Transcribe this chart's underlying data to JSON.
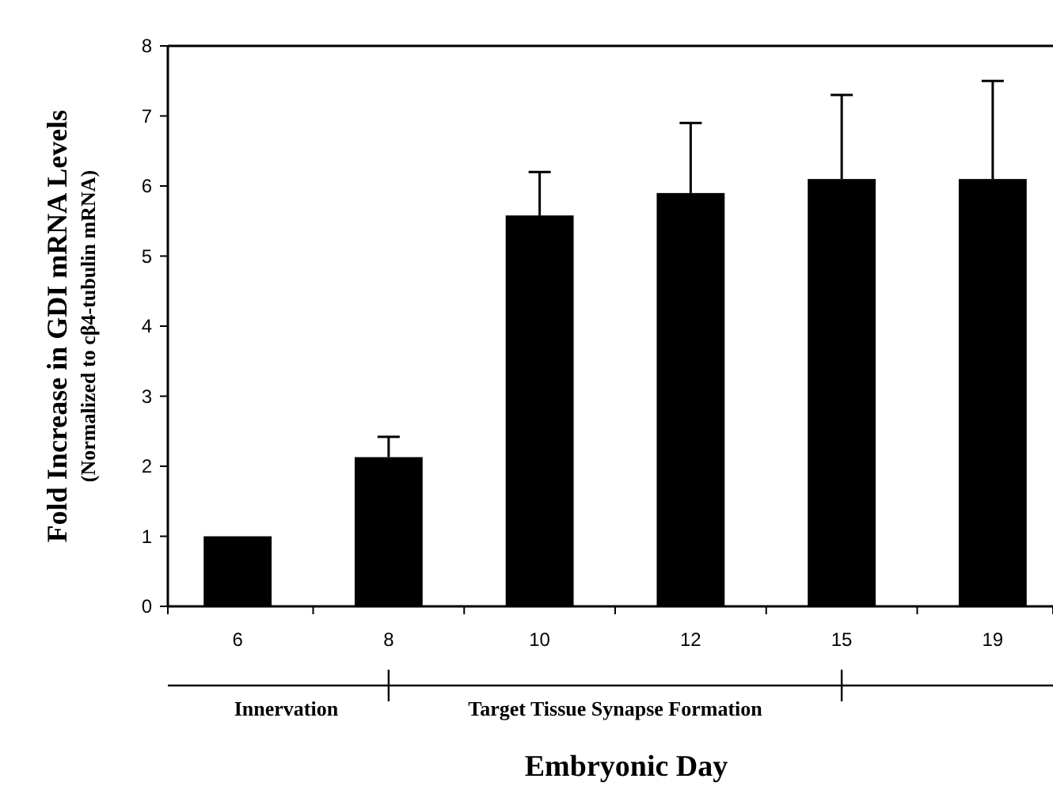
{
  "chart_data": {
    "type": "bar",
    "xlabel": "Embryonic Day",
    "ylabel": "Fold Increase in GDI mRNA Levels\n(Normalized to cβ4-tubulin mRNA)",
    "categories": [
      "6",
      "8",
      "10",
      "12",
      "15",
      "19"
    ],
    "values": [
      1.0,
      2.13,
      5.58,
      5.9,
      6.1,
      6.1
    ],
    "errors": [
      null,
      [
        2.13,
        2.42
      ],
      [
        5.58,
        6.2
      ],
      [
        5.9,
        6.9
      ],
      [
        6.1,
        7.3
      ],
      [
        6.1,
        7.5
      ]
    ],
    "color": "#000000",
    "ylim": [
      0,
      8
    ],
    "yticks": [
      0,
      1,
      2,
      3,
      4,
      5,
      6,
      7,
      8
    ],
    "annotations": [
      "Innervation",
      "Target Tissue Synapse Formation"
    ],
    "grid": false
  }
}
